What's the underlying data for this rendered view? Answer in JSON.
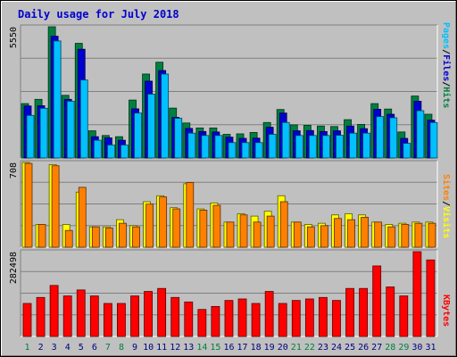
{
  "title": "Daily usage for July 2018",
  "colors": {
    "hits": "#008040",
    "files": "#0000d0",
    "pages": "#00c0ff",
    "visits": "#ffff00",
    "sites": "#ff8000",
    "kbytes": "#ff0000",
    "weekend_label": "#008040",
    "weekday_label": "#000080",
    "plot_bg": "#c0c0c0"
  },
  "chart_data": [
    {
      "type": "bar",
      "categories": [
        "1",
        "2",
        "3",
        "4",
        "5",
        "6",
        "7",
        "8",
        "9",
        "10",
        "11",
        "12",
        "13",
        "14",
        "15",
        "16",
        "17",
        "18",
        "19",
        "20",
        "21",
        "22",
        "23",
        "24",
        "25",
        "26",
        "27",
        "28",
        "29",
        "30",
        "31"
      ],
      "weekend_days": [
        "1",
        "7",
        "8",
        "14",
        "15",
        "21",
        "22",
        "28",
        "29"
      ],
      "ymax_label": "5550",
      "ylim": [
        0,
        5550
      ],
      "legend": [
        "Pages",
        "/",
        "Files",
        "/",
        "Hits"
      ],
      "series": [
        {
          "name": "Hits",
          "values": [
            2300,
            2480,
            5550,
            2650,
            4850,
            1150,
            950,
            900,
            2450,
            3550,
            4050,
            2110,
            1480,
            1270,
            1270,
            1000,
            1020,
            1080,
            1500,
            2050,
            1400,
            1380,
            1350,
            1330,
            1620,
            1420,
            2300,
            2070,
            1100,
            2620,
            1850
          ]
        },
        {
          "name": "Files",
          "values": [
            2200,
            2210,
            5150,
            2480,
            4600,
            900,
            850,
            750,
            2080,
            3250,
            3700,
            1720,
            1250,
            1120,
            1100,
            880,
            830,
            840,
            1300,
            1900,
            1150,
            1160,
            1120,
            1150,
            1350,
            1240,
            2060,
            1850,
            830,
            2400,
            1600
          ]
        },
        {
          "name": "Pages",
          "values": [
            1800,
            2100,
            4950,
            2400,
            3300,
            750,
            550,
            550,
            1900,
            2700,
            3550,
            1680,
            1050,
            950,
            950,
            650,
            650,
            650,
            1000,
            1500,
            950,
            950,
            950,
            960,
            1050,
            1050,
            1750,
            1700,
            620,
            2000,
            1500
          ]
        }
      ]
    },
    {
      "type": "bar",
      "categories": [
        "1",
        "2",
        "3",
        "4",
        "5",
        "6",
        "7",
        "8",
        "9",
        "10",
        "11",
        "12",
        "13",
        "14",
        "15",
        "16",
        "17",
        "18",
        "19",
        "20",
        "21",
        "22",
        "23",
        "24",
        "25",
        "26",
        "27",
        "28",
        "29",
        "30",
        "31"
      ],
      "ymax_label": "708",
      "ylim": [
        0,
        708
      ],
      "legend": [
        "Sites",
        "/",
        "Visits"
      ],
      "series": [
        {
          "name": "Visits",
          "values": [
            708,
            190,
            690,
            190,
            460,
            170,
            170,
            230,
            180,
            380,
            430,
            330,
            530,
            320,
            370,
            210,
            280,
            260,
            300,
            430,
            210,
            190,
            200,
            270,
            280,
            270,
            210,
            190,
            200,
            210,
            210
          ]
        },
        {
          "name": "Sites",
          "values": [
            700,
            190,
            680,
            140,
            500,
            170,
            160,
            200,
            170,
            360,
            420,
            320,
            540,
            310,
            350,
            210,
            270,
            210,
            260,
            380,
            210,
            170,
            180,
            240,
            230,
            250,
            210,
            170,
            190,
            200,
            200
          ]
        }
      ]
    },
    {
      "type": "bar",
      "categories": [
        "1",
        "2",
        "3",
        "4",
        "5",
        "6",
        "7",
        "8",
        "9",
        "10",
        "11",
        "12",
        "13",
        "14",
        "15",
        "16",
        "17",
        "18",
        "19",
        "20",
        "21",
        "22",
        "23",
        "24",
        "25",
        "26",
        "27",
        "28",
        "29",
        "30",
        "31"
      ],
      "ymax_label": "282498",
      "ylim": [
        0,
        282498
      ],
      "legend": [
        "KBytes"
      ],
      "series": [
        {
          "name": "KBytes",
          "values": [
            110000,
            130000,
            170000,
            135000,
            155000,
            135000,
            110000,
            110000,
            135000,
            150000,
            160000,
            130000,
            115000,
            90000,
            100000,
            120000,
            125000,
            110000,
            150000,
            110000,
            120000,
            125000,
            130000,
            120000,
            160000,
            160000,
            235000,
            165000,
            135000,
            282498,
            255000
          ]
        }
      ]
    }
  ]
}
